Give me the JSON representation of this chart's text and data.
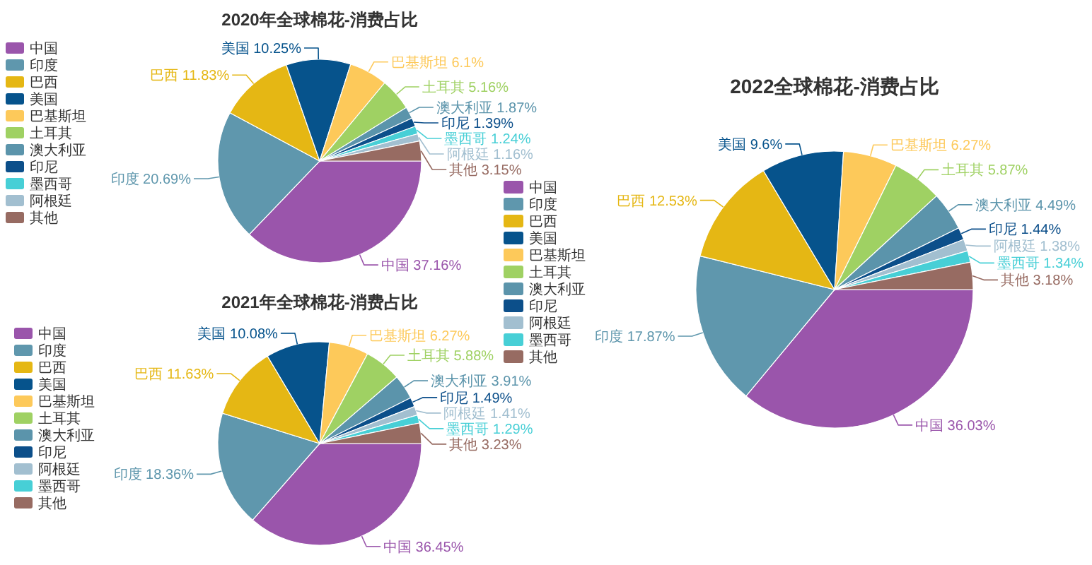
{
  "chart_data": [
    {
      "type": "pie",
      "title": "2020年全球棉花-消费占比",
      "categories": [
        "中国",
        "印度",
        "巴西",
        "美国",
        "巴基斯坦",
        "土耳其",
        "澳大利亚",
        "印尼",
        "墨西哥",
        "阿根廷",
        "其他"
      ],
      "values": [
        37.16,
        20.69,
        11.83,
        10.25,
        6.1,
        5.16,
        1.87,
        1.39,
        1.24,
        1.16,
        3.15
      ],
      "value_labels": [
        "37.16%",
        "20.69%",
        "11.83%",
        "10.25%",
        "6.1%",
        "5.16%",
        "1.87%",
        "1.39%",
        "1.24%",
        "1.16%",
        "3.15%"
      ],
      "colors": [
        "#9a55ab",
        "#5f97ad",
        "#e5b714",
        "#06538c",
        "#fdc95a",
        "#9fd163",
        "#5b94ab",
        "#0c4f8a",
        "#47cfd6",
        "#a2bfd0",
        "#976b62"
      ],
      "legend": "left"
    },
    {
      "type": "pie",
      "title": "2021年全球棉花-消费占比",
      "categories": [
        "中国",
        "印度",
        "巴西",
        "美国",
        "巴基斯坦",
        "土耳其",
        "澳大利亚",
        "印尼",
        "阿根廷",
        "墨西哥",
        "其他"
      ],
      "values": [
        36.45,
        18.36,
        11.63,
        10.08,
        6.27,
        5.88,
        3.91,
        1.49,
        1.41,
        1.29,
        3.23
      ],
      "value_labels": [
        "36.45%",
        "18.36%",
        "11.63%",
        "10.08%",
        "6.27%",
        "5.88%",
        "3.91%",
        "1.49%",
        "1.41%",
        "1.29%",
        "3.23%"
      ],
      "colors": [
        "#9a55ab",
        "#5f97ad",
        "#e5b714",
        "#06538c",
        "#fdc95a",
        "#9fd163",
        "#5b94ab",
        "#0c4f8a",
        "#a2bfd0",
        "#47cfd6",
        "#976b62"
      ],
      "legend": "left"
    },
    {
      "type": "pie",
      "title": "2022全球棉花-消费占比",
      "categories": [
        "中国",
        "印度",
        "巴西",
        "美国",
        "巴基斯坦",
        "土耳其",
        "澳大利亚",
        "印尼",
        "阿根廷",
        "墨西哥",
        "其他"
      ],
      "values": [
        36.03,
        17.87,
        12.53,
        9.6,
        6.27,
        5.87,
        4.49,
        1.44,
        1.38,
        1.34,
        3.18
      ],
      "value_labels": [
        "36.03%",
        "17.87%",
        "12.53%",
        "9.6%",
        "6.27%",
        "5.87%",
        "4.49%",
        "1.44%",
        "1.38%",
        "1.34%",
        "3.18%"
      ],
      "colors": [
        "#9a55ab",
        "#5f97ad",
        "#e5b714",
        "#06538c",
        "#fdc95a",
        "#9fd163",
        "#5b94ab",
        "#0c4f8a",
        "#a2bfd0",
        "#47cfd6",
        "#976b62"
      ],
      "legend": "left"
    }
  ]
}
